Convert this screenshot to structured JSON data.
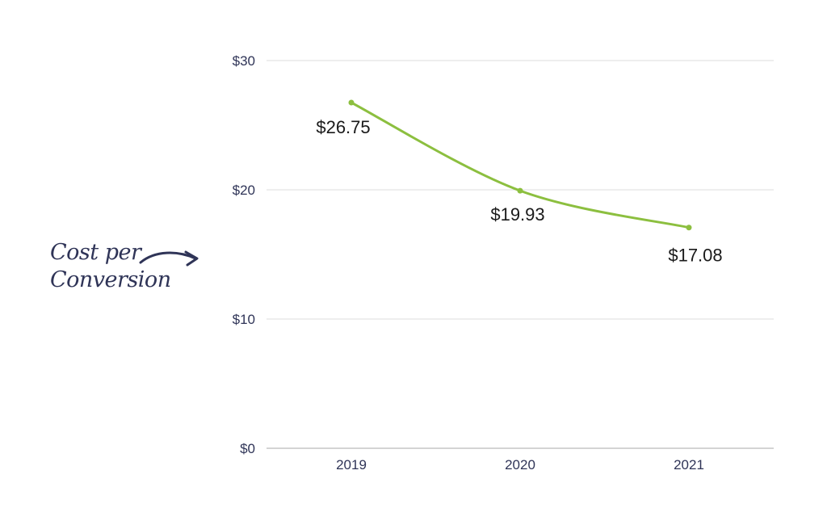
{
  "colors": {
    "line": "#8cbf3f",
    "grid": "#dddddd",
    "tick": "#2f3457",
    "datalabel": "#1a1a1a",
    "baseline": "#bbbbbb"
  },
  "chart_data": {
    "type": "line",
    "title": "",
    "xlabel": "",
    "ylabel": "Cost per Conversion",
    "ylabel_lines": [
      "Cost per",
      "Conversion"
    ],
    "categories": [
      "2019",
      "2020",
      "2021"
    ],
    "series": [
      {
        "values": [
          26.75,
          19.93,
          17.08
        ]
      }
    ],
    "data_labels": [
      "$26.75",
      "$19.93",
      "$17.08"
    ],
    "ylim": [
      0,
      30
    ],
    "yticks": [
      0,
      10,
      20,
      30
    ],
    "ytick_labels": [
      "$0",
      "$10",
      "$20",
      "$30"
    ],
    "grid": true,
    "legend": "none"
  }
}
